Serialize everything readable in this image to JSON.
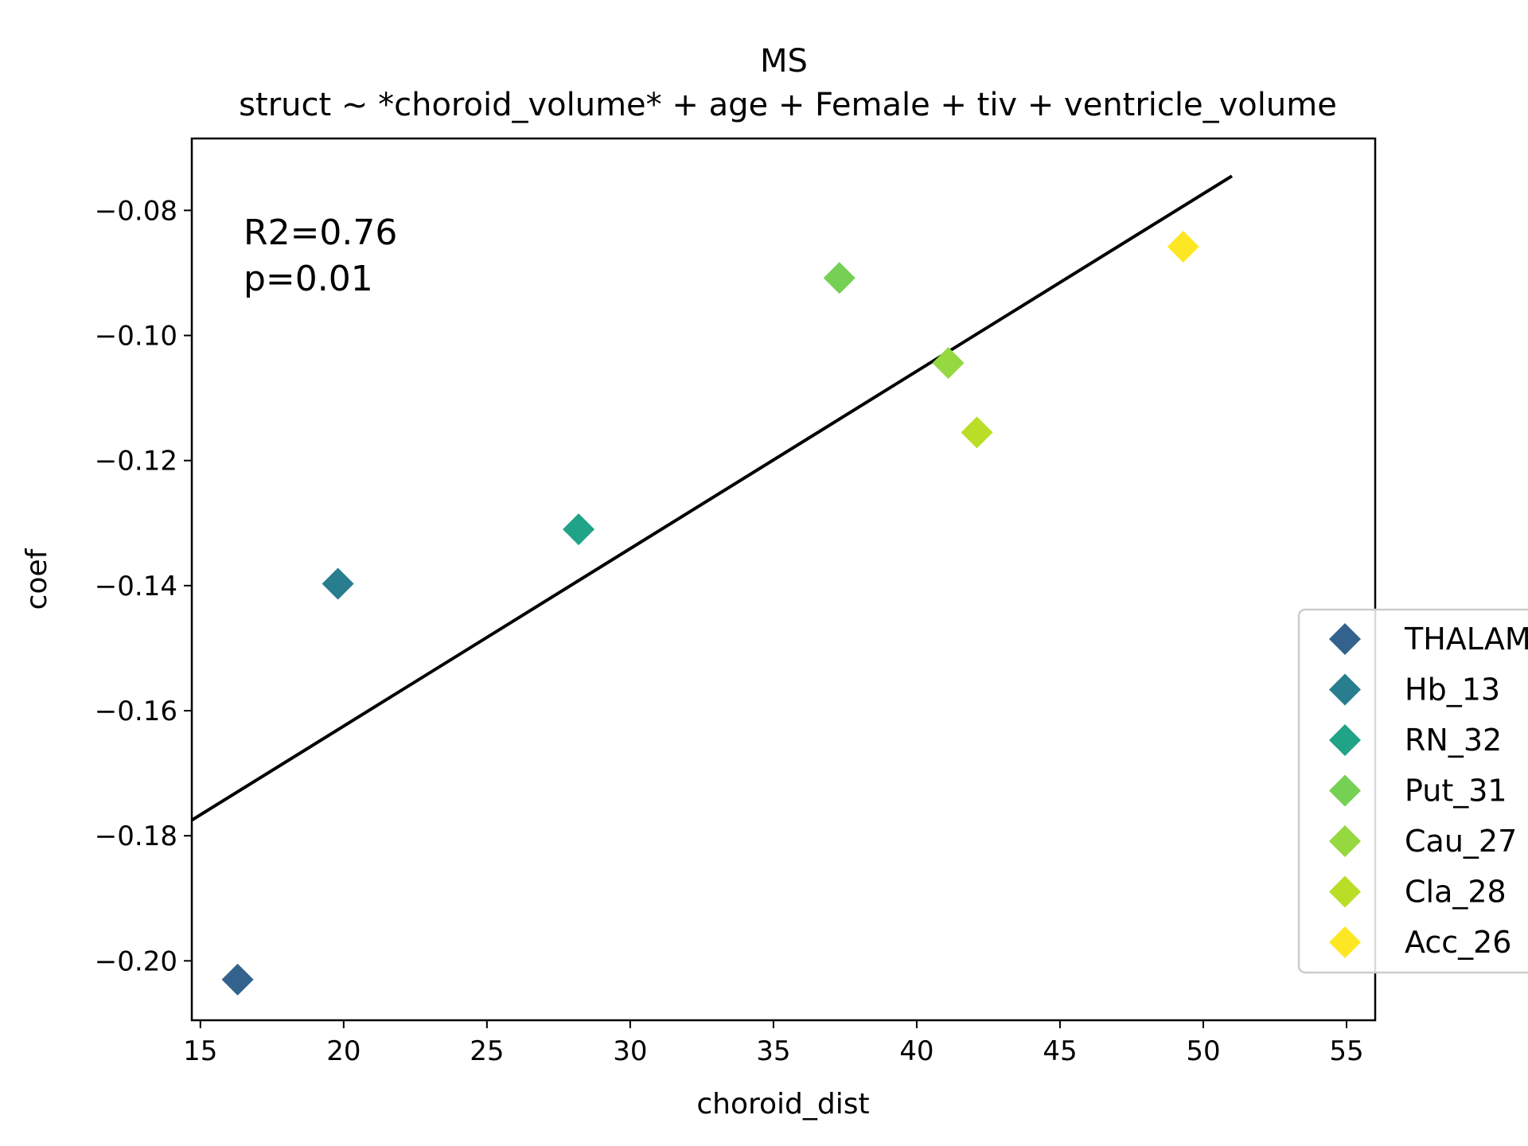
{
  "chart_data": {
    "type": "scatter",
    "title": "MS",
    "subtitle": "struct ~ *choroid_volume* + age + Female + tiv + ventricle_volume",
    "xlabel": "choroid_dist",
    "ylabel": "coef",
    "xlim": [
      14.7,
      56.0
    ],
    "ylim": [
      -0.2095,
      -0.0685
    ],
    "xticks": [
      15,
      20,
      25,
      30,
      35,
      40,
      45,
      50,
      55
    ],
    "xtick_labels": [
      "15",
      "20",
      "25",
      "30",
      "35",
      "40",
      "45",
      "50",
      "55"
    ],
    "yticks": [
      -0.2,
      -0.18,
      -0.16,
      -0.14,
      -0.12,
      -0.1,
      -0.08
    ],
    "ytick_labels": [
      "−0.20",
      "−0.18",
      "−0.16",
      "−0.14",
      "−0.12",
      "−0.10",
      "−0.08"
    ],
    "grid": false,
    "legend_position": "right, partially outside the plot area",
    "annotation": {
      "lines": [
        "R2=0.76",
        "p=0.01"
      ]
    },
    "fit_line": {
      "x": [
        14.7,
        51.0
      ],
      "y": [
        -0.1775,
        -0.0745
      ],
      "color": "#000000"
    },
    "series": [
      {
        "name": "THALAMUS",
        "x": 16.3,
        "y": -0.203,
        "color": "#33638d"
      },
      {
        "name": "Hb_13",
        "x": 19.8,
        "y": -0.1397,
        "color": "#287d8e"
      },
      {
        "name": "RN_32",
        "x": 28.2,
        "y": -0.131,
        "color": "#20a386"
      },
      {
        "name": "Put_31",
        "x": 37.3,
        "y": -0.0908,
        "color": "#75d054"
      },
      {
        "name": "Cau_27",
        "x": 41.1,
        "y": -0.1044,
        "color": "#95d840"
      },
      {
        "name": "Cla_28",
        "x": 42.1,
        "y": -0.1155,
        "color": "#bade28"
      },
      {
        "name": "Acc_26",
        "x": 49.3,
        "y": -0.0858,
        "color": "#fde725"
      }
    ]
  }
}
